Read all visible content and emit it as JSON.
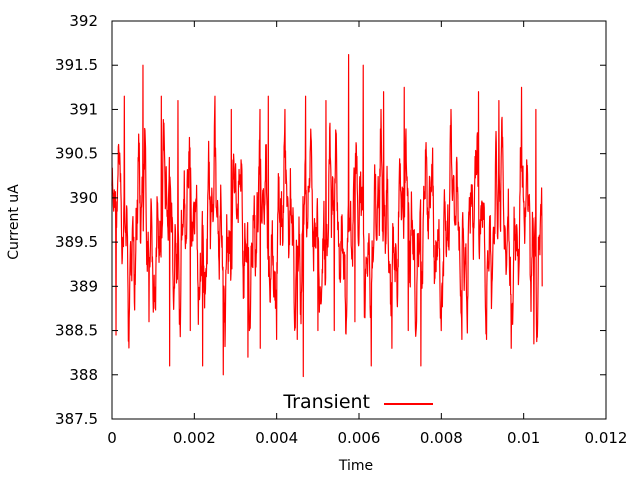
{
  "chart_data": {
    "type": "line",
    "title": "",
    "xlabel": "Time",
    "ylabel": "Current uA",
    "xlim": [
      0,
      0.012
    ],
    "ylim": [
      387.5,
      392
    ],
    "x_ticks": [
      "0",
      "0.002",
      "0.004",
      "0.006",
      "0.008",
      "0.01",
      "0.012"
    ],
    "y_ticks": [
      "387.5",
      "388",
      "388.5",
      "389",
      "389.5",
      "390",
      "390.5",
      "391",
      "391.5",
      "392"
    ],
    "legend": {
      "placement": "bottom-center",
      "entries": [
        "Transient"
      ]
    },
    "grid": false,
    "series": [
      {
        "name": "Transient",
        "color": "#ff0000",
        "x_start": 0,
        "x_end": 0.01045,
        "peaks": [
          [
            0.0003,
            391.15
          ],
          [
            0.00075,
            391.5
          ],
          [
            0.0012,
            391.15
          ],
          [
            0.0016,
            391.1
          ],
          [
            0.0025,
            391.15
          ],
          [
            0.0029,
            391.0
          ],
          [
            0.0033,
            391.2
          ],
          [
            0.0038,
            391.15
          ],
          [
            0.0042,
            391.0
          ],
          [
            0.0047,
            391.15
          ],
          [
            0.0052,
            391.1
          ],
          [
            0.00575,
            391.62
          ],
          [
            0.0061,
            391.5
          ],
          [
            0.0066,
            391.2
          ],
          [
            0.0071,
            391.25
          ],
          [
            0.0075,
            391.3
          ],
          [
            0.008,
            391.25
          ],
          [
            0.0085,
            391.1
          ],
          [
            0.0089,
            391.2
          ],
          [
            0.0094,
            391.1
          ],
          [
            0.00995,
            391.25
          ],
          [
            0.0103,
            391.0
          ]
        ],
        "troughs": [
          [
            0.0001,
            388.45
          ],
          [
            0.0009,
            388.6
          ],
          [
            0.0014,
            388.1
          ],
          [
            0.0019,
            388.5
          ],
          [
            0.0022,
            388.1
          ],
          [
            0.0027,
            388.0
          ],
          [
            0.0033,
            388.2
          ],
          [
            0.0036,
            388.3
          ],
          [
            0.004,
            388.4
          ],
          [
            0.0045,
            388.4
          ],
          [
            0.00465,
            387.98
          ],
          [
            0.005,
            388.5
          ],
          [
            0.0054,
            388.5
          ],
          [
            0.0059,
            388.6
          ],
          [
            0.0063,
            388.1
          ],
          [
            0.0068,
            388.3
          ],
          [
            0.0072,
            388.5
          ],
          [
            0.0075,
            388.1
          ],
          [
            0.008,
            388.5
          ],
          [
            0.0085,
            388.4
          ],
          [
            0.0091,
            388.4
          ],
          [
            0.0097,
            388.3
          ],
          [
            0.01025,
            388.35
          ],
          [
            0.01045,
            389.0
          ]
        ]
      }
    ]
  }
}
